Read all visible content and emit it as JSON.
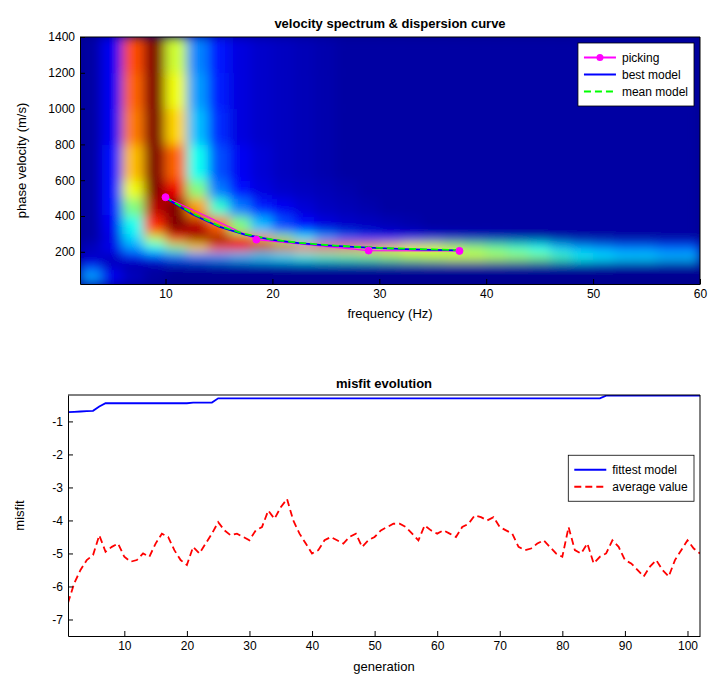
{
  "chart_data": [
    {
      "type": "heatmap",
      "title": "velocity spectrum & dispersion curve",
      "x_label": "frequency (Hz)",
      "y_label": "phase velocity (m/s)",
      "xlim": [
        2,
        60
      ],
      "xticks": [
        10,
        20,
        30,
        40,
        50,
        60
      ],
      "ylim": [
        20,
        1400
      ],
      "yticks": [
        200,
        400,
        600,
        800,
        1000,
        1200,
        1400
      ],
      "legend": "upper right",
      "x_bins": [
        2,
        4,
        6,
        8,
        10,
        12,
        14,
        16,
        18,
        20,
        22,
        24,
        26,
        28,
        30,
        32,
        34,
        36,
        38,
        40,
        42,
        44,
        46,
        48,
        50,
        52,
        54,
        56,
        58,
        60
      ],
      "y_bins": [
        20,
        100,
        150,
        200,
        250,
        300,
        400,
        500,
        600,
        800,
        1000,
        1200,
        1400
      ],
      "z": [
        [
          0.35,
          0.2,
          0.15,
          0.12,
          0.1,
          0.1,
          0.1,
          0.1,
          0.1,
          0.1,
          0.1,
          0.1,
          0.1,
          0.1,
          0.1,
          0.1,
          0.1,
          0.1,
          0.1,
          0.1,
          0.1,
          0.1,
          0.1,
          0.1,
          0.1,
          0.1,
          0.1,
          0.1,
          0.1
        ],
        [
          0.2,
          0.15,
          0.12,
          0.12,
          0.12,
          0.12,
          0.12,
          0.12,
          0.12,
          0.12,
          0.12,
          0.12,
          0.12,
          0.12,
          0.12,
          0.12,
          0.12,
          0.12,
          0.12,
          0.12,
          0.12,
          0.12,
          0.12,
          0.12,
          0.12,
          0.12,
          0.12,
          0.12,
          0.12
        ],
        [
          0.15,
          0.15,
          0.2,
          0.25,
          0.3,
          0.32,
          0.35,
          0.38,
          0.4,
          0.42,
          0.45,
          0.48,
          0.5,
          0.52,
          0.55,
          0.58,
          0.6,
          0.62,
          0.62,
          0.6,
          0.58,
          0.55,
          0.5,
          0.45,
          0.42,
          0.4,
          0.4,
          0.38,
          0.38
        ],
        [
          0.15,
          0.2,
          0.35,
          0.45,
          0.55,
          0.7,
          0.82,
          0.9,
          0.95,
          0.92,
          0.88,
          0.85,
          0.8,
          0.76,
          0.72,
          0.68,
          0.64,
          0.6,
          0.56,
          0.52,
          0.48,
          0.44,
          0.38,
          0.34,
          0.32,
          0.3,
          0.3,
          0.28,
          0.28
        ],
        [
          0.12,
          0.18,
          0.4,
          0.6,
          0.85,
          0.98,
          1.0,
          0.9,
          0.75,
          0.58,
          0.45,
          0.36,
          0.3,
          0.26,
          0.22,
          0.2,
          0.18,
          0.16,
          0.15,
          0.14,
          0.13,
          0.12,
          0.12,
          0.12,
          0.12,
          0.12,
          0.12,
          0.12,
          0.12
        ],
        [
          0.12,
          0.2,
          0.45,
          0.85,
          1.0,
          0.95,
          0.8,
          0.55,
          0.38,
          0.28,
          0.22,
          0.18,
          0.16,
          0.15,
          0.14,
          0.13,
          0.12,
          0.12,
          0.12,
          0.12,
          0.12,
          0.12,
          0.12,
          0.12,
          0.12,
          0.12,
          0.12,
          0.12,
          0.12
        ],
        [
          0.12,
          0.22,
          0.55,
          0.95,
          1.0,
          0.75,
          0.48,
          0.32,
          0.24,
          0.2,
          0.17,
          0.15,
          0.14,
          0.13,
          0.12,
          0.12,
          0.12,
          0.12,
          0.12,
          0.12,
          0.12,
          0.12,
          0.12,
          0.12,
          0.12,
          0.12,
          0.12,
          0.12,
          0.12
        ],
        [
          0.12,
          0.22,
          0.65,
          1.0,
          0.9,
          0.55,
          0.32,
          0.22,
          0.18,
          0.16,
          0.15,
          0.14,
          0.13,
          0.12,
          0.12,
          0.12,
          0.12,
          0.12,
          0.12,
          0.12,
          0.12,
          0.12,
          0.12,
          0.12,
          0.12,
          0.12,
          0.12,
          0.12,
          0.12
        ],
        [
          0.12,
          0.22,
          0.72,
          1.0,
          0.8,
          0.45,
          0.28,
          0.2,
          0.17,
          0.15,
          0.14,
          0.13,
          0.12,
          0.12,
          0.12,
          0.12,
          0.12,
          0.12,
          0.12,
          0.12,
          0.12,
          0.12,
          0.12,
          0.12,
          0.12,
          0.12,
          0.12,
          0.12,
          0.12
        ],
        [
          0.12,
          0.2,
          0.78,
          1.0,
          0.7,
          0.38,
          0.25,
          0.18,
          0.16,
          0.15,
          0.14,
          0.13,
          0.12,
          0.12,
          0.12,
          0.12,
          0.12,
          0.12,
          0.12,
          0.12,
          0.12,
          0.12,
          0.12,
          0.12,
          0.12,
          0.12,
          0.12,
          0.12,
          0.12
        ],
        [
          0.12,
          0.2,
          0.8,
          1.0,
          0.65,
          0.35,
          0.24,
          0.18,
          0.16,
          0.15,
          0.14,
          0.13,
          0.12,
          0.12,
          0.12,
          0.12,
          0.12,
          0.12,
          0.12,
          0.12,
          0.12,
          0.12,
          0.12,
          0.12,
          0.12,
          0.12,
          0.12,
          0.12,
          0.12
        ],
        [
          0.12,
          0.2,
          0.82,
          1.0,
          0.62,
          0.33,
          0.23,
          0.18,
          0.16,
          0.15,
          0.14,
          0.13,
          0.12,
          0.12,
          0.12,
          0.12,
          0.12,
          0.12,
          0.12,
          0.12,
          0.12,
          0.12,
          0.12,
          0.12,
          0.12,
          0.12,
          0.12,
          0.12,
          0.12
        ]
      ],
      "series": [
        {
          "name": "picking",
          "color": "#ff00ff",
          "marker": "circle",
          "line_style": "solid",
          "x": [
            10,
            18.5,
            29,
            37.5
          ],
          "values": [
            505,
            268,
            207,
            205
          ]
        },
        {
          "name": "best model",
          "color": "#0000ff",
          "line_style": "solid",
          "x": [
            10,
            12.5,
            15,
            17.5,
            20,
            22.5,
            25,
            27.5,
            30,
            32.5,
            35,
            37.5
          ],
          "values": [
            500,
            410,
            340,
            295,
            266,
            248,
            236,
            227,
            220,
            215,
            211,
            208
          ]
        },
        {
          "name": "mean model",
          "color": "#00ff00",
          "line_style": "dashed",
          "x": [
            10,
            12.5,
            15,
            17.5,
            20,
            22.5,
            25,
            27.5,
            30,
            32.5,
            35,
            37.5
          ],
          "values": [
            506,
            415,
            345,
            298,
            268,
            250,
            238,
            229,
            222,
            217,
            213,
            210
          ]
        }
      ]
    },
    {
      "type": "line",
      "title": "misfit evolution",
      "x_label": "generation",
      "y_label": "misfit",
      "xlim": [
        1,
        102
      ],
      "xticks": [
        10,
        20,
        30,
        40,
        50,
        60,
        70,
        80,
        90,
        100
      ],
      "ylim": [
        -7.5,
        -0.2
      ],
      "yticks": [
        -7,
        -6,
        -5,
        -4,
        -3,
        -2,
        -1
      ],
      "legend": "right",
      "x": [
        1,
        2,
        3,
        4,
        5,
        6,
        7,
        8,
        9,
        10,
        11,
        12,
        13,
        14,
        15,
        16,
        17,
        18,
        19,
        20,
        21,
        22,
        23,
        24,
        25,
        26,
        27,
        28,
        29,
        30,
        31,
        32,
        33,
        34,
        35,
        36,
        37,
        38,
        39,
        40,
        41,
        42,
        43,
        44,
        45,
        46,
        47,
        48,
        49,
        50,
        51,
        52,
        53,
        54,
        55,
        56,
        57,
        58,
        59,
        60,
        61,
        62,
        63,
        64,
        65,
        66,
        67,
        68,
        69,
        70,
        71,
        72,
        73,
        74,
        75,
        76,
        77,
        78,
        79,
        80,
        81,
        82,
        83,
        84,
        85,
        86,
        87,
        88,
        89,
        90,
        91,
        92,
        93,
        94,
        95,
        96,
        97,
        98,
        99,
        100,
        101,
        102
      ],
      "series": [
        {
          "name": "fittest model",
          "color": "#0000ff",
          "line_style": "solid",
          "values": [
            -0.72,
            -0.71,
            -0.7,
            -0.69,
            -0.68,
            -0.55,
            -0.45,
            -0.45,
            -0.45,
            -0.45,
            -0.45,
            -0.45,
            -0.45,
            -0.45,
            -0.45,
            -0.45,
            -0.45,
            -0.45,
            -0.45,
            -0.45,
            -0.43,
            -0.43,
            -0.43,
            -0.43,
            -0.3,
            -0.3,
            -0.3,
            -0.3,
            -0.3,
            -0.3,
            -0.3,
            -0.3,
            -0.3,
            -0.3,
            -0.3,
            -0.3,
            -0.3,
            -0.3,
            -0.3,
            -0.3,
            -0.3,
            -0.3,
            -0.3,
            -0.3,
            -0.3,
            -0.3,
            -0.3,
            -0.3,
            -0.3,
            -0.3,
            -0.3,
            -0.3,
            -0.3,
            -0.3,
            -0.3,
            -0.3,
            -0.3,
            -0.3,
            -0.3,
            -0.3,
            -0.3,
            -0.3,
            -0.3,
            -0.3,
            -0.3,
            -0.3,
            -0.3,
            -0.3,
            -0.3,
            -0.3,
            -0.3,
            -0.3,
            -0.3,
            -0.3,
            -0.3,
            -0.3,
            -0.3,
            -0.3,
            -0.3,
            -0.3,
            -0.3,
            -0.3,
            -0.3,
            -0.3,
            -0.3,
            -0.3,
            -0.22,
            -0.22,
            -0.22,
            -0.22,
            -0.22,
            -0.22,
            -0.22,
            -0.22,
            -0.22,
            -0.22,
            -0.22,
            -0.22,
            -0.22,
            -0.22,
            -0.22,
            -0.22
          ]
        },
        {
          "name": "average value",
          "color": "#ff0000",
          "line_style": "dashed",
          "values": [
            -6.5,
            -5.9,
            -5.5,
            -5.2,
            -5.05,
            -4.45,
            -4.95,
            -4.8,
            -4.7,
            -5.1,
            -5.25,
            -5.2,
            -5.0,
            -5.1,
            -4.7,
            -4.4,
            -4.5,
            -4.9,
            -5.2,
            -5.35,
            -4.8,
            -5.0,
            -4.7,
            -4.4,
            -4.05,
            -4.3,
            -4.45,
            -4.4,
            -4.5,
            -4.6,
            -4.3,
            -4.2,
            -3.7,
            -3.95,
            -3.6,
            -3.35,
            -4.0,
            -4.4,
            -4.7,
            -5.0,
            -4.9,
            -4.6,
            -4.5,
            -4.6,
            -4.7,
            -4.5,
            -4.4,
            -4.8,
            -4.6,
            -4.5,
            -4.3,
            -4.2,
            -4.1,
            -4.1,
            -4.2,
            -4.4,
            -4.6,
            -4.15,
            -4.3,
            -4.4,
            -4.3,
            -4.4,
            -4.5,
            -4.2,
            -4.1,
            -3.85,
            -3.9,
            -4.0,
            -3.9,
            -4.2,
            -4.3,
            -4.4,
            -4.8,
            -4.9,
            -4.85,
            -4.7,
            -4.6,
            -4.8,
            -5.0,
            -5.1,
            -4.2,
            -4.9,
            -5.0,
            -4.7,
            -5.3,
            -5.1,
            -5.0,
            -4.6,
            -4.8,
            -5.2,
            -5.3,
            -5.5,
            -5.7,
            -5.4,
            -5.2,
            -5.5,
            -5.7,
            -5.2,
            -4.9,
            -4.6,
            -4.85,
            -5.0
          ]
        }
      ]
    }
  ]
}
